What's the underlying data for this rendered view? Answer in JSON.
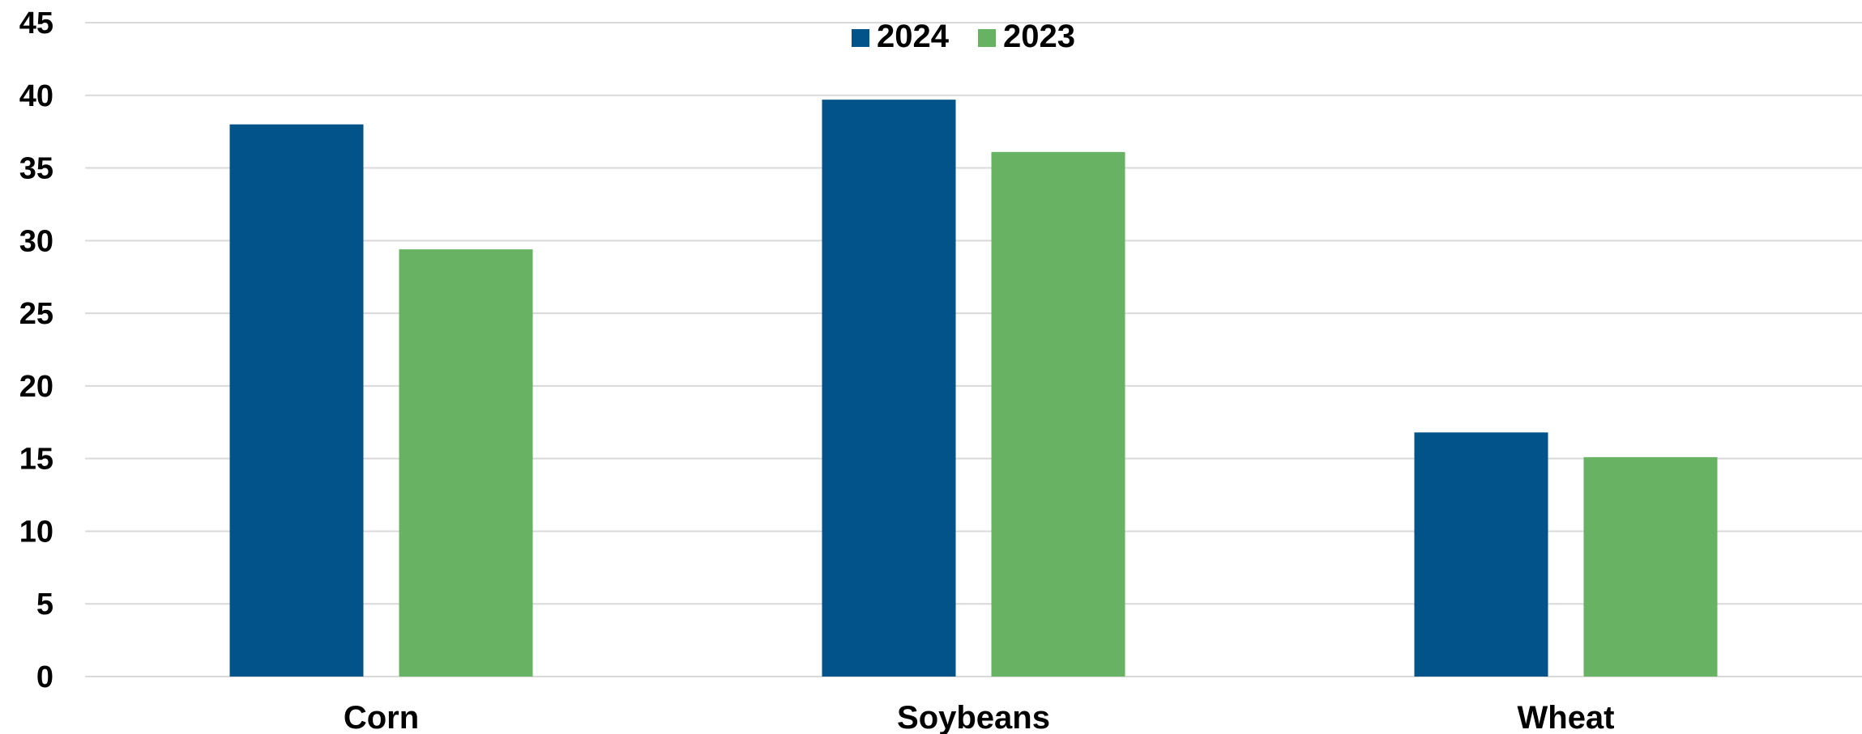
{
  "chart_data": {
    "type": "bar",
    "title": "",
    "xlabel": "",
    "ylabel": "",
    "categories": [
      "Corn",
      "Soybeans",
      "Wheat"
    ],
    "series": [
      {
        "name": "2024",
        "values": [
          38.0,
          39.7,
          16.8
        ],
        "color": "#02538a"
      },
      {
        "name": "2023",
        "values": [
          29.4,
          36.1,
          15.1
        ],
        "color": "#68b363"
      }
    ],
    "ylim": [
      0,
      45
    ],
    "yticks": [
      0,
      5,
      10,
      15,
      20,
      25,
      30,
      35,
      40,
      45
    ],
    "grid": true,
    "legend_position": "top-center"
  }
}
